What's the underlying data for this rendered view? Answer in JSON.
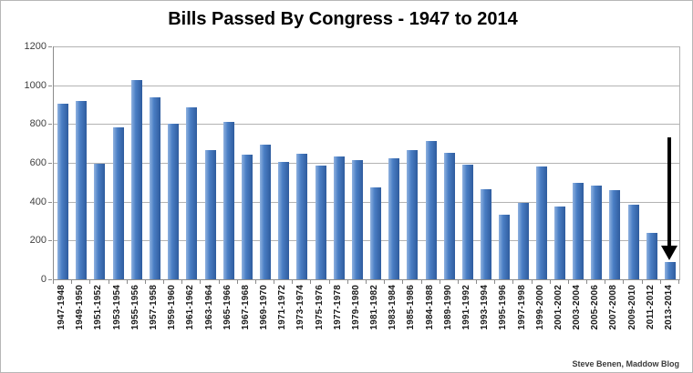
{
  "chart_data": {
    "type": "bar",
    "title": "Bills Passed By Congress - 1947 to 2014",
    "xlabel": "",
    "ylabel": "",
    "ylim": [
      0,
      1200
    ],
    "ytick_step": 200,
    "ytick_labels": [
      "0",
      "200",
      "400",
      "600",
      "800",
      "1000",
      "1200"
    ],
    "grid": true,
    "legend": false,
    "categories": [
      "1947-1948",
      "1949-1950",
      "1951-1952",
      "1953-1954",
      "1955-1956",
      "1957-1958",
      "1959-1960",
      "1961-1962",
      "1963-1964",
      "1965-1966",
      "1967-1968",
      "1969-1970",
      "1971-1972",
      "1973-1974",
      "1975-1976",
      "1977-1978",
      "1979-1980",
      "1981-1982",
      "1983-1984",
      "1985-1986",
      "1984-1988",
      "1989-1990",
      "1991-1992",
      "1993-1994",
      "1995-1996",
      "1997-1998",
      "1999-2000",
      "2001-2002",
      "2003-2004",
      "2005-2006",
      "2007-2008",
      "2009-2010",
      "2011-2012",
      "2013-2014"
    ],
    "values": [
      906,
      921,
      594,
      781,
      1028,
      936,
      800,
      885,
      666,
      810,
      640,
      695,
      607,
      649,
      588,
      633,
      613,
      473,
      623,
      664,
      713,
      650,
      590,
      465,
      333,
      394,
      580,
      377,
      498,
      482,
      460,
      383,
      238,
      90
    ],
    "bar_color": "#4277be",
    "bar_gradient": [
      "#8fb2e0",
      "#4a7ec4",
      "#2e5c9e"
    ],
    "gridline_color": "#b3b3b3",
    "axis_color": "#8c8c8c",
    "annotation": {
      "shape": "down-arrow",
      "color": "#000000",
      "target_category": "2013-2014",
      "from_value": 730,
      "to_value": 100
    },
    "attribution": "Steve Benen, Maddow Blog"
  }
}
